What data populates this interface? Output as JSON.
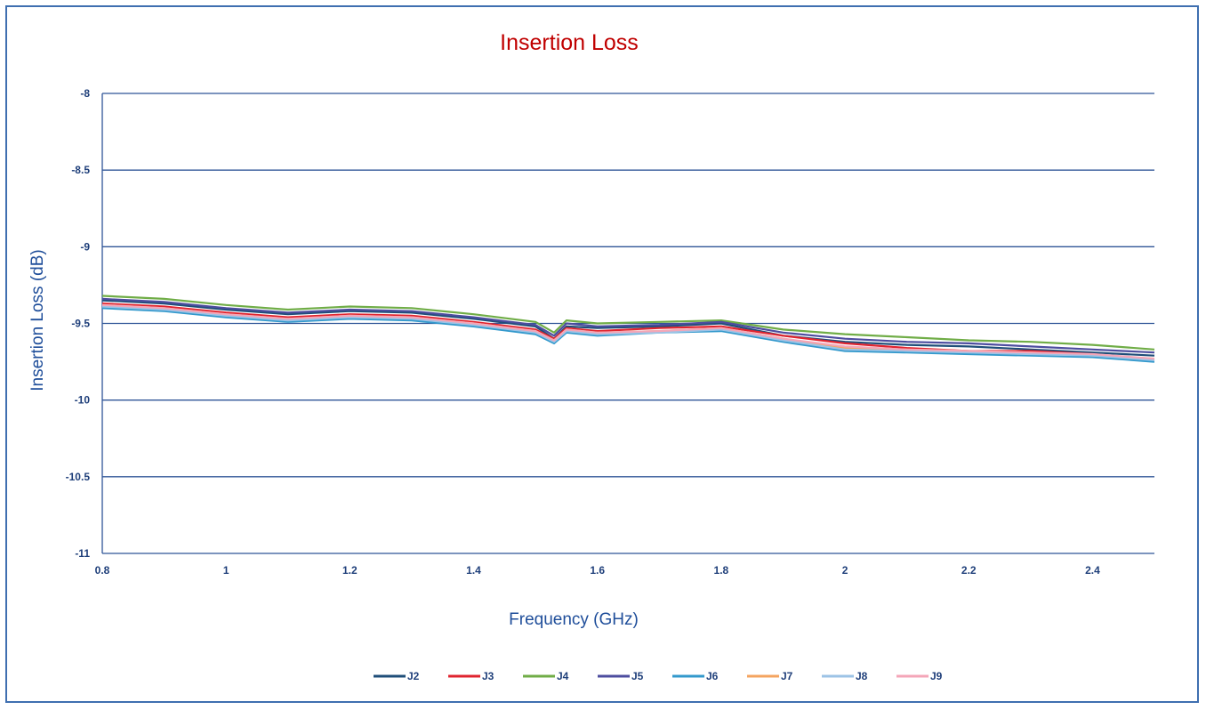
{
  "chart_data": {
    "type": "line",
    "title": "Insertion Loss",
    "xlabel": "Frequency (GHz)",
    "ylabel": "Insertion Loss (dB)",
    "xlim": [
      0.8,
      2.5
    ],
    "ylim": [
      -11,
      -8
    ],
    "xticks": [
      "0.8",
      "1",
      "1.2",
      "1.4",
      "1.6",
      "1.8",
      "2",
      "2.2",
      "2.4"
    ],
    "yticks": [
      "-8",
      "-8.5",
      "-9",
      "-9.5",
      "-10",
      "-10.5",
      "-11"
    ],
    "grid": true,
    "legend": "bottom",
    "colors": {
      "title": "#c00000",
      "axis_title": "#1f4e9a",
      "gridline": "#2f5597",
      "frame": "#3f6fb0"
    },
    "x": [
      0.8,
      0.9,
      1.0,
      1.1,
      1.2,
      1.3,
      1.4,
      1.5,
      1.53,
      1.55,
      1.6,
      1.7,
      1.8,
      1.9,
      2.0,
      2.1,
      2.2,
      2.3,
      2.4,
      2.5
    ],
    "series": [
      {
        "name": "J2",
        "color": "#1f4e79",
        "values": [
          -9.35,
          -9.37,
          -9.41,
          -9.44,
          -9.42,
          -9.43,
          -9.47,
          -9.52,
          -9.6,
          -9.52,
          -9.53,
          -9.52,
          -9.5,
          -9.58,
          -9.62,
          -9.64,
          -9.65,
          -9.67,
          -9.69,
          -9.71
        ]
      },
      {
        "name": "J3",
        "color": "#e0242f",
        "values": [
          -9.37,
          -9.39,
          -9.43,
          -9.46,
          -9.44,
          -9.45,
          -9.49,
          -9.54,
          -9.6,
          -9.53,
          -9.55,
          -9.53,
          -9.52,
          -9.58,
          -9.63,
          -9.66,
          -9.68,
          -9.68,
          -9.7,
          -9.74
        ]
      },
      {
        "name": "J4",
        "color": "#70ad47",
        "values": [
          -9.32,
          -9.34,
          -9.38,
          -9.41,
          -9.39,
          -9.4,
          -9.44,
          -9.49,
          -9.56,
          -9.48,
          -9.5,
          -9.49,
          -9.48,
          -9.54,
          -9.57,
          -9.59,
          -9.61,
          -9.62,
          -9.64,
          -9.67
        ]
      },
      {
        "name": "J5",
        "color": "#4d4d9f",
        "values": [
          -9.34,
          -9.36,
          -9.4,
          -9.43,
          -9.41,
          -9.42,
          -9.46,
          -9.51,
          -9.58,
          -9.5,
          -9.52,
          -9.51,
          -9.49,
          -9.56,
          -9.6,
          -9.62,
          -9.63,
          -9.65,
          -9.67,
          -9.69
        ]
      },
      {
        "name": "J6",
        "color": "#3399cc",
        "values": [
          -9.4,
          -9.42,
          -9.46,
          -9.49,
          -9.47,
          -9.48,
          -9.52,
          -9.57,
          -9.63,
          -9.56,
          -9.58,
          -9.56,
          -9.55,
          -9.62,
          -9.68,
          -9.69,
          -9.7,
          -9.71,
          -9.72,
          -9.75
        ]
      },
      {
        "name": "J7",
        "color": "#f4a460",
        "values": [
          -9.38,
          -9.4,
          -9.44,
          -9.47,
          -9.45,
          -9.46,
          -9.5,
          -9.55,
          -9.61,
          -9.54,
          -9.56,
          -9.55,
          -9.53,
          -9.6,
          -9.66,
          -9.67,
          -9.68,
          -9.69,
          -9.71,
          -9.73
        ]
      },
      {
        "name": "J8",
        "color": "#9cc3e6",
        "values": [
          -9.39,
          -9.41,
          -9.45,
          -9.48,
          -9.46,
          -9.47,
          -9.51,
          -9.56,
          -9.62,
          -9.55,
          -9.57,
          -9.56,
          -9.54,
          -9.61,
          -9.67,
          -9.68,
          -9.69,
          -9.7,
          -9.71,
          -9.74
        ]
      },
      {
        "name": "J9",
        "color": "#f4a6b8",
        "values": [
          -9.38,
          -9.4,
          -9.44,
          -9.47,
          -9.45,
          -9.46,
          -9.5,
          -9.55,
          -9.61,
          -9.54,
          -9.56,
          -9.55,
          -9.53,
          -9.6,
          -9.65,
          -9.67,
          -9.68,
          -9.69,
          -9.7,
          -9.73
        ]
      }
    ]
  }
}
